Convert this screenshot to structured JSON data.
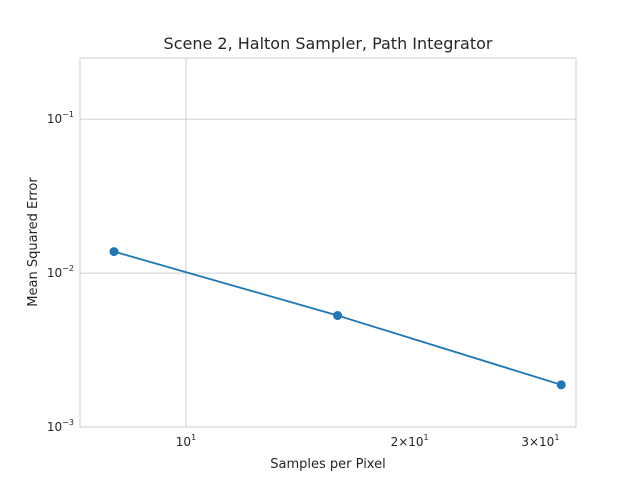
{
  "chart_data": {
    "type": "line",
    "title": "Scene 2, Halton Sampler, Path Integrator",
    "xlabel": "Samples per Pixel",
    "ylabel": "Mean Squared Error",
    "xscale": "log",
    "yscale": "log",
    "xlim": [
      7.2,
      33.5
    ],
    "ylim": [
      0.001,
      0.25
    ],
    "grid": true,
    "x_ticks": [
      {
        "value": 10,
        "base": "10",
        "exp": "1"
      },
      {
        "value": 20,
        "base": "2×10",
        "exp": "1"
      },
      {
        "value": 30,
        "base": "3×10",
        "exp": "1"
      }
    ],
    "y_ticks": [
      {
        "value": 0.001,
        "base": "10",
        "exp": "−3"
      },
      {
        "value": 0.01,
        "base": "10",
        "exp": "−2"
      },
      {
        "value": 0.1,
        "base": "10",
        "exp": "−1"
      }
    ],
    "series": [
      {
        "color": "#1f77b4",
        "x": [
          8,
          16,
          32
        ],
        "y": [
          0.0138,
          0.0053,
          0.00188
        ]
      }
    ]
  }
}
